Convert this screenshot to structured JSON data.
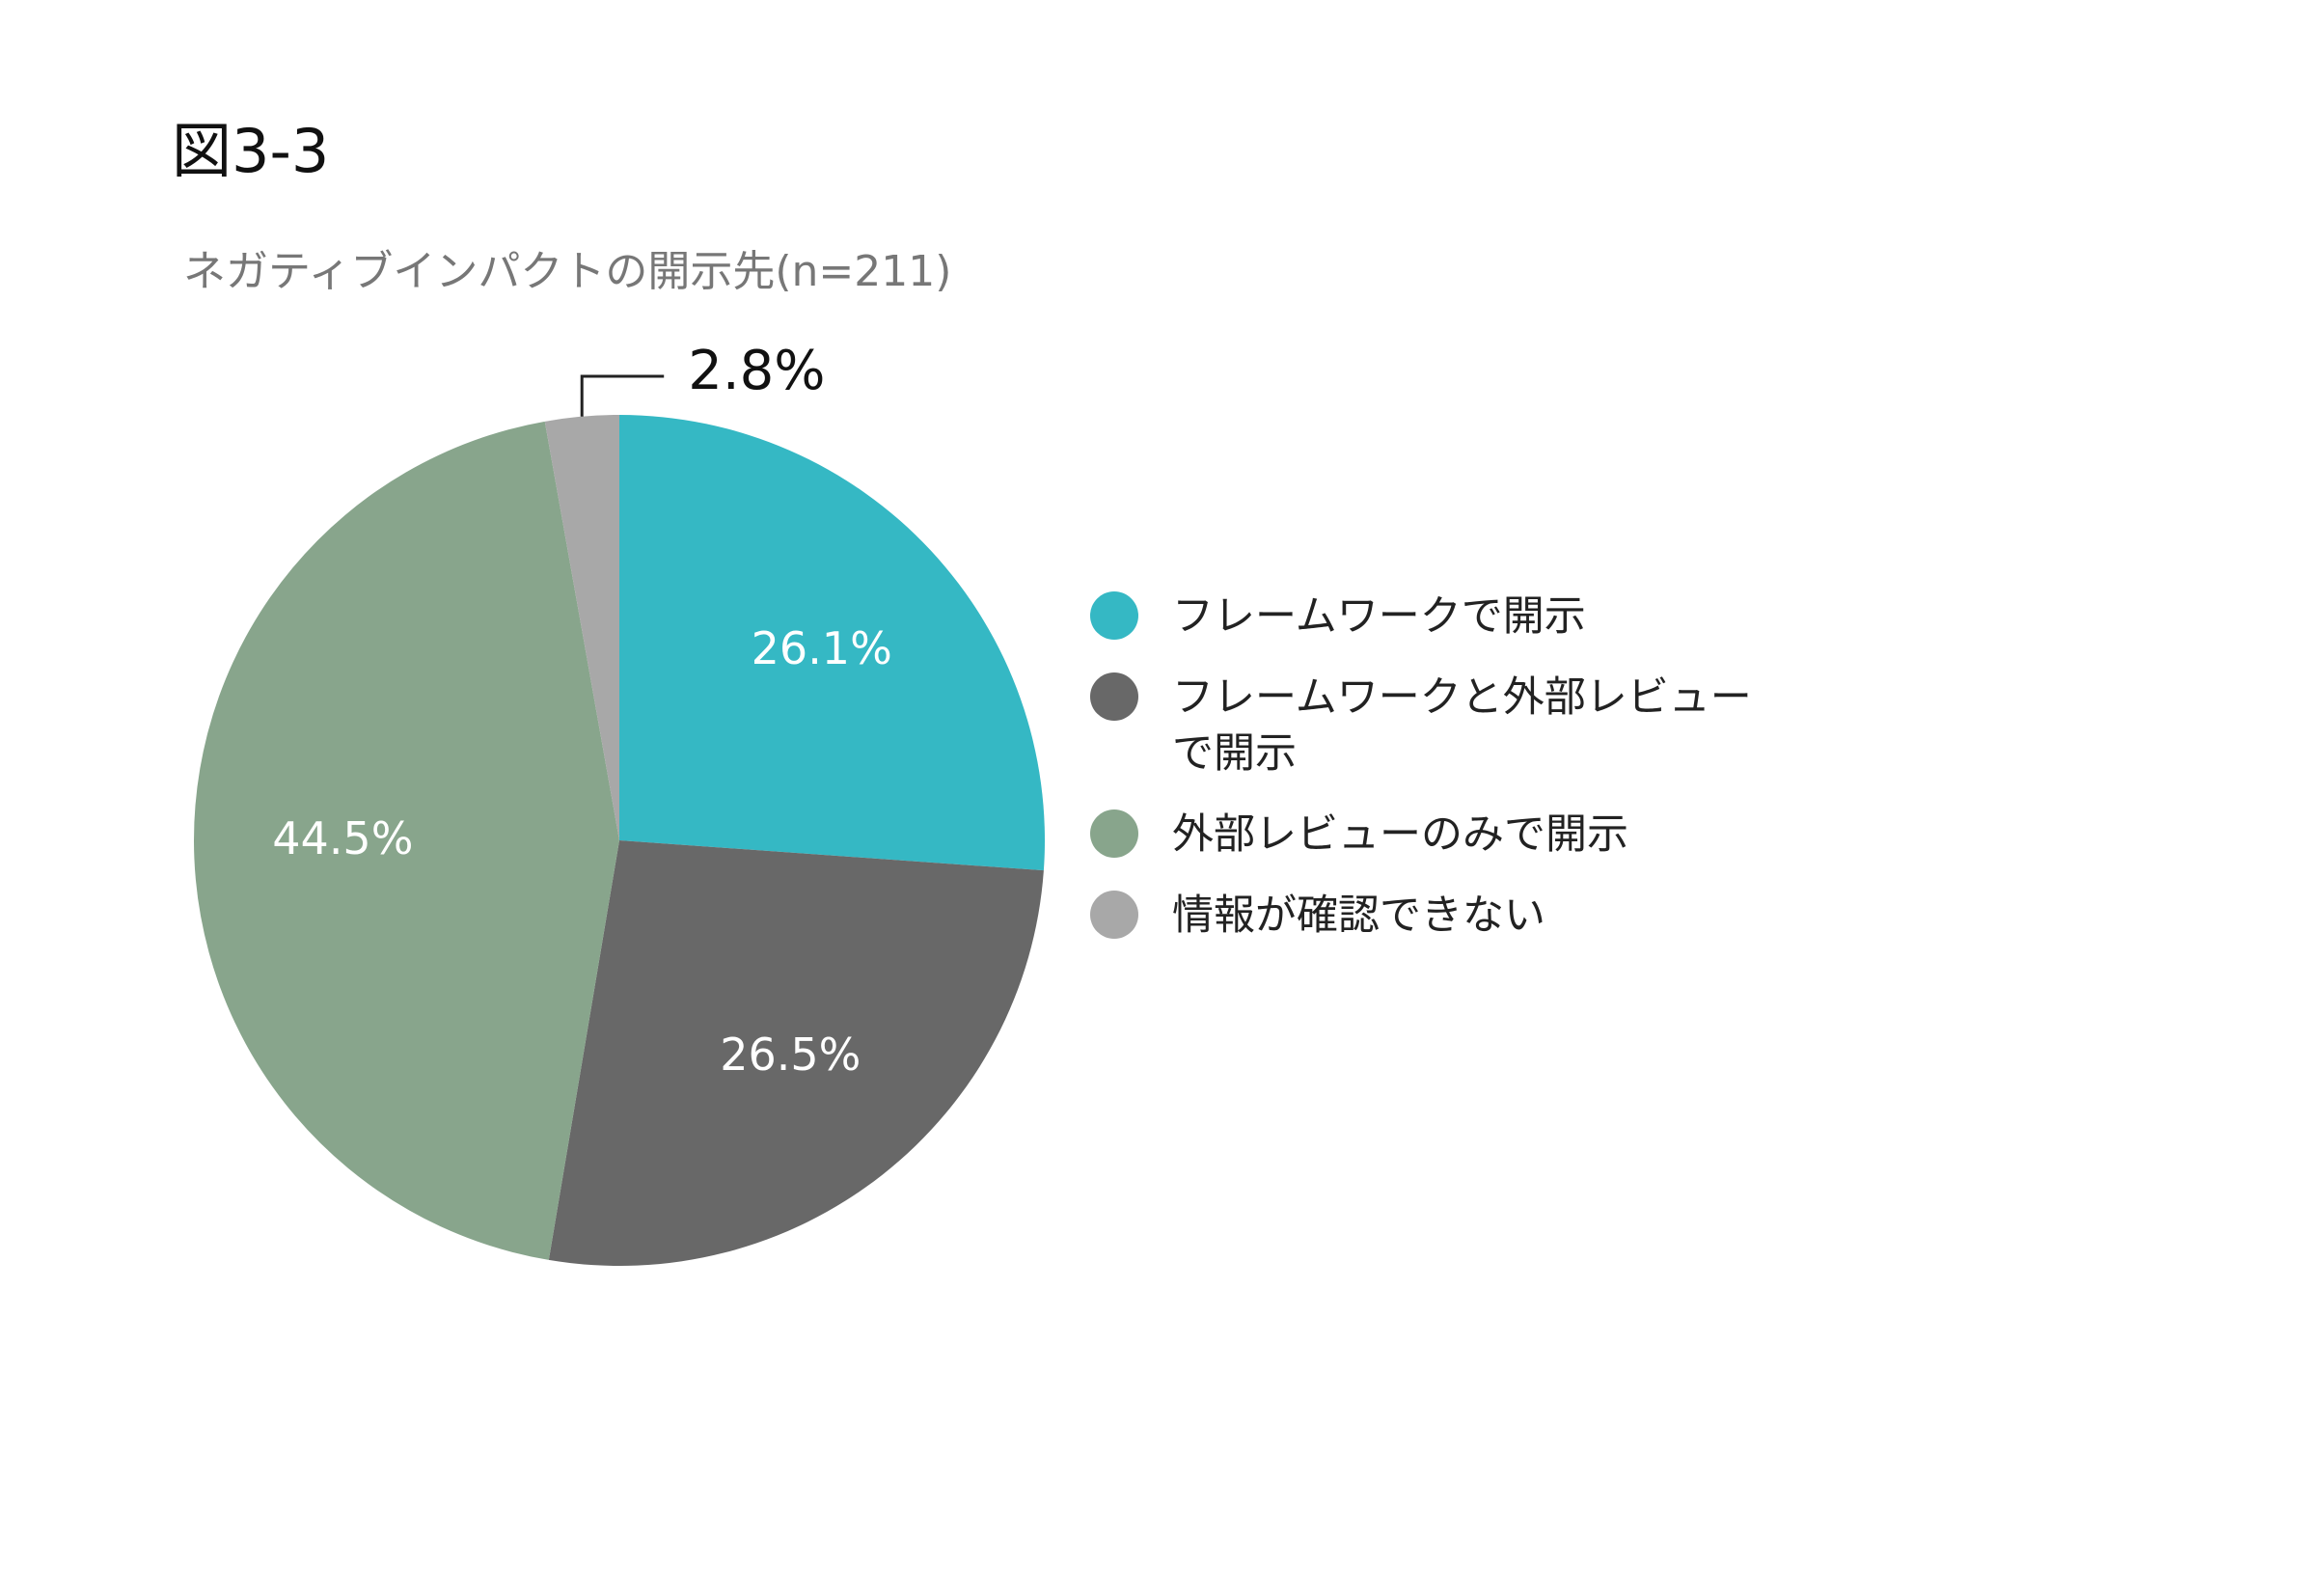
{
  "chart_data": {
    "type": "pie",
    "title": "図3-3",
    "subtitle": "ネガティブインパクトの開示先(n=211)",
    "categories": [
      "フレームワークで開示",
      "フレームワークと外部レビューで開示",
      "外部レビューのみで開示",
      "情報が確認できない"
    ],
    "values": [
      26.1,
      26.5,
      44.5,
      2.8
    ],
    "value_labels": [
      "26.1%",
      "26.5%",
      "44.5%",
      "2.8%"
    ],
    "colors": [
      "#35b8c4",
      "#686868",
      "#88a58c",
      "#a8a8a8"
    ],
    "legend": "right"
  }
}
